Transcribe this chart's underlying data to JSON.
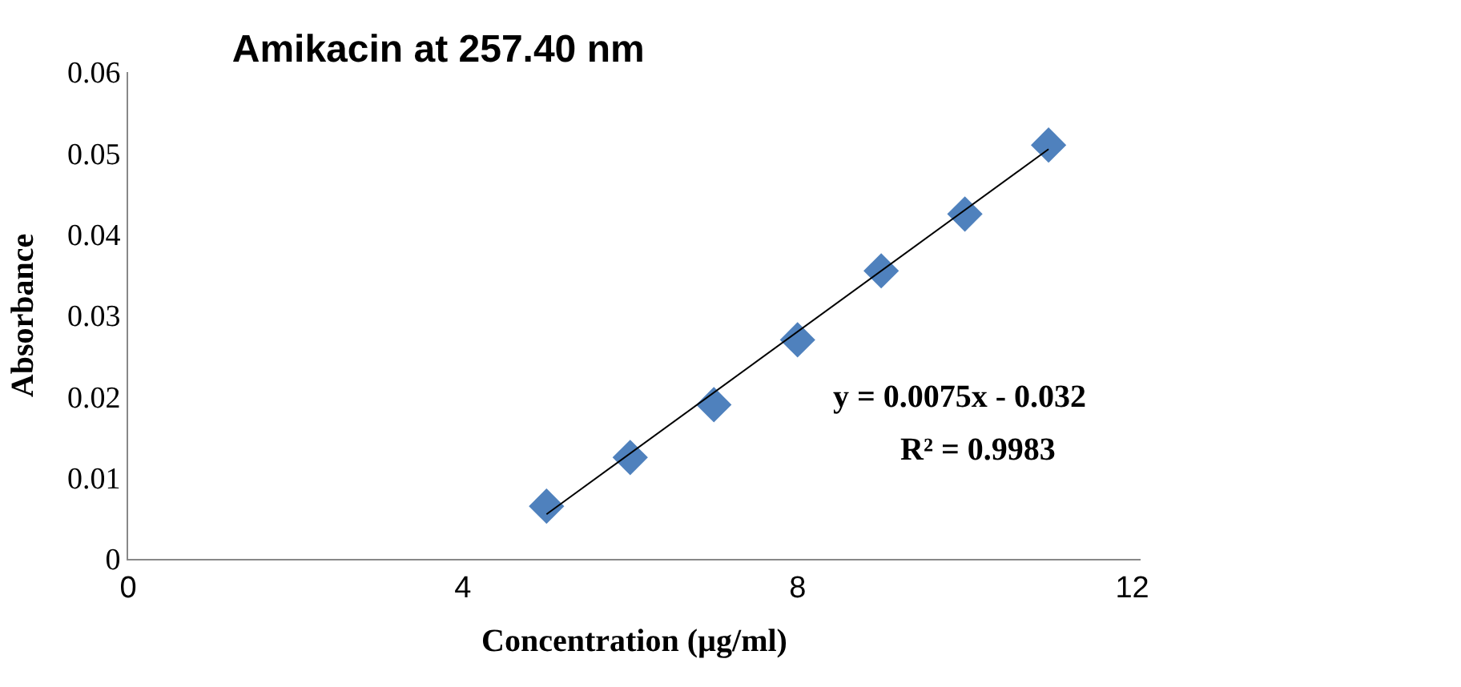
{
  "chart_data": {
    "type": "scatter",
    "title": "Amikacin at 257.40 nm",
    "xlabel": "Concentration (µg/ml)",
    "ylabel": "Absorbance",
    "xlim": [
      0,
      12.1
    ],
    "xticks": [
      0,
      4,
      8,
      12
    ],
    "ylim": [
      0,
      0.06
    ],
    "yticks": [
      0,
      0.01,
      0.02,
      0.03,
      0.04,
      0.05,
      0.06
    ],
    "grid": false,
    "series": [
      {
        "color": "#4f81bd",
        "marker": "diamond",
        "x": [
          5,
          6,
          7,
          8,
          9,
          10,
          11
        ],
        "values": [
          0.0065,
          0.0125,
          0.019,
          0.027,
          0.0355,
          0.0425,
          0.051
        ]
      },
      {
        "type": "line",
        "color": "#000000",
        "x": [
          5,
          11
        ],
        "values": [
          0.0055,
          0.0505
        ]
      }
    ],
    "annotations": [
      "y = 0.0075x - 0.032",
      "R² = 0.9983"
    ]
  }
}
